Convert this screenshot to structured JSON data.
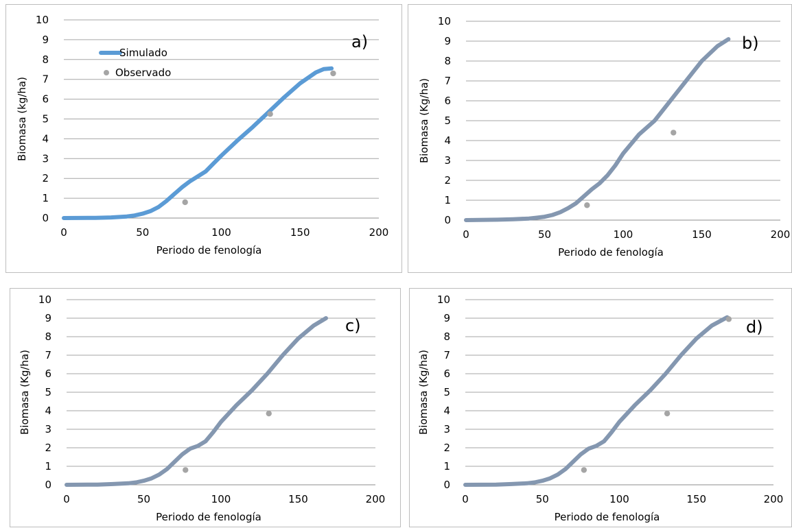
{
  "chart_data": [
    {
      "type": "line",
      "panel_label": "a)",
      "xlabel": "Periodo de fenología",
      "ylabel": "Biomasa (kg/ha)",
      "xlim": [
        0,
        200
      ],
      "ylim": [
        0,
        10
      ],
      "xticks": [
        0,
        50,
        100,
        150,
        200
      ],
      "yticks": [
        0,
        1,
        2,
        3,
        4,
        5,
        6,
        7,
        8,
        9,
        10
      ],
      "grid": "horizontal",
      "legend": {
        "placement": "top-left",
        "entries": [
          "Simulado",
          "Observado"
        ]
      },
      "series": [
        {
          "name": "Simulado",
          "kind": "line",
          "color": "#5b9bd5",
          "x": [
            0,
            20,
            30,
            40,
            45,
            50,
            55,
            60,
            65,
            70,
            75,
            80,
            85,
            90,
            95,
            100,
            110,
            120,
            130,
            140,
            150,
            160,
            165,
            170
          ],
          "y": [
            0,
            0.01,
            0.03,
            0.08,
            0.13,
            0.22,
            0.35,
            0.55,
            0.85,
            1.2,
            1.55,
            1.85,
            2.1,
            2.35,
            2.75,
            3.15,
            3.9,
            4.6,
            5.35,
            6.1,
            6.8,
            7.35,
            7.52,
            7.55
          ]
        },
        {
          "name": "Observado",
          "kind": "scatter",
          "color": "#a5a5a5",
          "x": [
            77,
            131,
            171
          ],
          "y": [
            0.8,
            5.25,
            7.3
          ]
        }
      ]
    },
    {
      "type": "line",
      "panel_label": "b)",
      "xlabel": "Periodo de fenología",
      "ylabel": "Biomasa (Kg/ha)",
      "xlim": [
        0,
        200
      ],
      "ylim": [
        0,
        10
      ],
      "xticks": [
        0,
        50,
        100,
        150,
        200
      ],
      "yticks": [
        0,
        1,
        2,
        3,
        4,
        5,
        6,
        7,
        8,
        9,
        10
      ],
      "grid": "horizontal",
      "series": [
        {
          "kind": "line",
          "color": "#8497b0",
          "x": [
            0,
            20,
            30,
            40,
            45,
            50,
            55,
            60,
            65,
            70,
            75,
            80,
            85,
            90,
            95,
            100,
            110,
            120,
            130,
            140,
            150,
            160,
            167
          ],
          "y": [
            0,
            0.02,
            0.04,
            0.08,
            0.12,
            0.17,
            0.26,
            0.4,
            0.6,
            0.85,
            1.2,
            1.55,
            1.85,
            2.25,
            2.75,
            3.35,
            4.3,
            5.0,
            6.0,
            7.0,
            8.0,
            8.75,
            9.1
          ]
        },
        {
          "kind": "scatter",
          "color": "#a5a5a5",
          "x": [
            77,
            132
          ],
          "y": [
            0.75,
            4.4
          ]
        }
      ]
    },
    {
      "type": "line",
      "panel_label": "c)",
      "xlabel": "Periodo de fenología",
      "ylabel": "Biomasa (Kg/ha)",
      "xlim": [
        0,
        200
      ],
      "ylim": [
        0,
        10
      ],
      "xticks": [
        0,
        50,
        100,
        150,
        200
      ],
      "yticks": [
        0,
        1,
        2,
        3,
        4,
        5,
        6,
        7,
        8,
        9,
        10
      ],
      "grid": "horizontal",
      "series": [
        {
          "kind": "line",
          "color": "#8497b0",
          "x": [
            0,
            20,
            30,
            40,
            45,
            50,
            55,
            60,
            65,
            70,
            75,
            80,
            85,
            90,
            95,
            100,
            110,
            120,
            130,
            140,
            150,
            160,
            168
          ],
          "y": [
            0,
            0.01,
            0.04,
            0.08,
            0.13,
            0.22,
            0.35,
            0.55,
            0.85,
            1.25,
            1.65,
            1.95,
            2.1,
            2.35,
            2.85,
            3.4,
            4.3,
            5.1,
            6.0,
            7.0,
            7.9,
            8.6,
            9.0
          ]
        },
        {
          "kind": "scatter",
          "color": "#a5a5a5",
          "x": [
            77,
            131
          ],
          "y": [
            0.8,
            3.85
          ]
        }
      ]
    },
    {
      "type": "line",
      "panel_label": "d)",
      "xlabel": "Periodo de fenología",
      "ylabel": "Biomasa (Kg/ha)",
      "xlim": [
        0,
        200
      ],
      "ylim": [
        0,
        10
      ],
      "xticks": [
        0,
        50,
        100,
        150,
        200
      ],
      "yticks": [
        0,
        1,
        2,
        3,
        4,
        5,
        6,
        7,
        8,
        9,
        10
      ],
      "grid": "horizontal",
      "series": [
        {
          "kind": "line",
          "color": "#8497b0",
          "x": [
            0,
            20,
            30,
            40,
            45,
            50,
            55,
            60,
            65,
            70,
            75,
            80,
            85,
            90,
            95,
            100,
            110,
            120,
            130,
            140,
            150,
            160,
            170
          ],
          "y": [
            0,
            0.01,
            0.04,
            0.08,
            0.13,
            0.22,
            0.35,
            0.55,
            0.85,
            1.25,
            1.65,
            1.95,
            2.1,
            2.35,
            2.85,
            3.4,
            4.3,
            5.1,
            6.0,
            7.0,
            7.9,
            8.6,
            9.05
          ]
        },
        {
          "kind": "scatter",
          "color": "#a5a5a5",
          "x": [
            77,
            131,
            171
          ],
          "y": [
            0.8,
            3.85,
            8.95
          ]
        }
      ]
    }
  ]
}
